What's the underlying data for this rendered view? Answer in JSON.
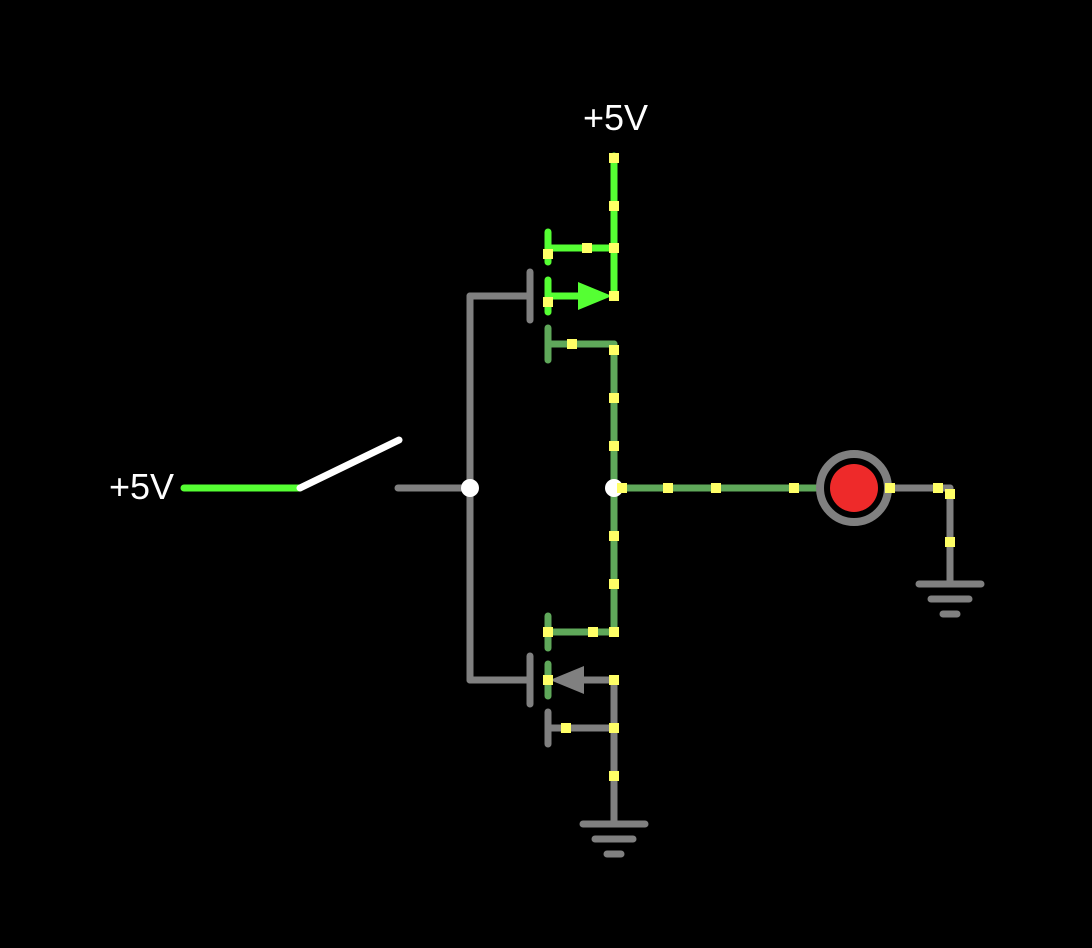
{
  "labels": {
    "vdd_top": "+5V",
    "input": "+5V"
  },
  "state": {
    "switch_closed": false,
    "led_lit": false
  },
  "colors": {
    "background": "#000000",
    "wire_idle": "#808080",
    "wire_high": "#55ff33",
    "wire_mid": "#5fa85a",
    "current_dot": "#ffff66",
    "switch_lever": "#ffffff",
    "node": "#ffffff",
    "led_fill": "#ee2a2a",
    "led_ring": "#808080",
    "text": "#ffffff"
  },
  "components": {
    "switch": "spst-switch",
    "pmos": "p-channel-mosfet",
    "nmos": "n-channel-mosfet",
    "led": "led",
    "ground": "ground"
  }
}
